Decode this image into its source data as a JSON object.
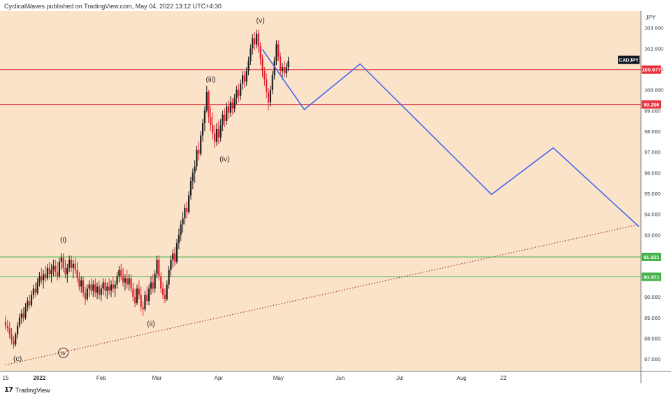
{
  "header": {
    "text": "CyclicalWaves published on TradingView.com, May 04, 2022 13:12 UTC+4:30"
  },
  "footer": {
    "logo": "17",
    "brand": "TradingView"
  },
  "colors": {
    "background": "#fbe3c9",
    "bull": "#1f1f1f",
    "bear": "#e0202f",
    "resistance": "#e8313d",
    "support": "#44b24a",
    "projection": "#3a63f0",
    "trendline": "#a03a2e"
  },
  "chart_data": {
    "type": "candlestick",
    "symbol": "CADJPY",
    "currency_label": "JPY",
    "y_ticks": [
      "103.000",
      "102.000",
      "101.000",
      "100.000",
      "99.000",
      "98.000",
      "97.000",
      "96.000",
      "95.000",
      "94.000",
      "93.000",
      "92.000",
      "91.000",
      "90.000",
      "89.000",
      "88.000",
      "87.000"
    ],
    "ylim": [
      86.4,
      103.8
    ],
    "x_ticks": [
      {
        "label": "15",
        "day": 0
      },
      {
        "label": "2022",
        "day": 17
      },
      {
        "label": "Feb",
        "day": 48
      },
      {
        "label": "Mar",
        "day": 76
      },
      {
        "label": "Apr",
        "day": 107
      },
      {
        "label": "May",
        "day": 137
      },
      {
        "label": "Jun",
        "day": 168
      },
      {
        "label": "Jul",
        "day": 198
      },
      {
        "label": "Aug",
        "day": 229
      },
      {
        "label": "22",
        "day": 250
      }
    ],
    "xlim": [
      0,
      318
    ],
    "price_levels": [
      {
        "label": "100.977",
        "value": 100.977,
        "kind": "resistance"
      },
      {
        "label": "99.296",
        "value": 99.296,
        "kind": "resistance"
      },
      {
        "label": "91.931",
        "value": 91.931,
        "kind": "support"
      },
      {
        "label": "90.971",
        "value": 90.971,
        "kind": "support"
      }
    ],
    "symbol_tag": {
      "label": "CADJPY",
      "value": 101.45
    },
    "wave_labels": [
      {
        "text": "(c)",
        "day": 6,
        "price": 86.9,
        "circled": false
      },
      {
        "text": "iv",
        "day": 29,
        "price": 87.2,
        "circled": true
      },
      {
        "text": "(i)",
        "day": 29,
        "price": 92.65,
        "circled": false
      },
      {
        "text": "(ii)",
        "day": 73,
        "price": 88.6,
        "circled": false
      },
      {
        "text": "(iii)",
        "day": 103,
        "price": 100.4,
        "circled": false
      },
      {
        "text": "(iv)",
        "day": 110,
        "price": 96.55,
        "circled": false
      },
      {
        "text": "(v)",
        "day": 128,
        "price": 103.25,
        "circled": false
      }
    ],
    "projection": [
      {
        "day": 129,
        "price": 101.95
      },
      {
        "day": 150,
        "price": 99.05
      },
      {
        "day": 178,
        "price": 101.25
      },
      {
        "day": 244,
        "price": 94.95
      },
      {
        "day": 275,
        "price": 97.2
      },
      {
        "day": 318,
        "price": 93.4
      }
    ],
    "trendline": [
      {
        "day": 0,
        "price": 86.72
      },
      {
        "day": 318,
        "price": 93.5
      }
    ],
    "candles": [
      {
        "d": 0,
        "o": 88.8,
        "h": 89.1,
        "l": 88.4,
        "c": 88.6
      },
      {
        "d": 1,
        "o": 88.6,
        "h": 88.9,
        "l": 88.3,
        "c": 88.5
      },
      {
        "d": 2,
        "o": 88.5,
        "h": 88.8,
        "l": 88.0,
        "c": 88.2
      },
      {
        "d": 3,
        "o": 88.2,
        "h": 88.5,
        "l": 87.7,
        "c": 87.9
      },
      {
        "d": 4,
        "o": 87.9,
        "h": 88.1,
        "l": 87.5,
        "c": 87.7
      },
      {
        "d": 5,
        "o": 87.7,
        "h": 88.3,
        "l": 87.6,
        "c": 88.2
      },
      {
        "d": 6,
        "o": 88.2,
        "h": 88.8,
        "l": 88.0,
        "c": 88.6
      },
      {
        "d": 7,
        "o": 88.6,
        "h": 89.2,
        "l": 88.5,
        "c": 89.0
      },
      {
        "d": 8,
        "o": 89.0,
        "h": 89.4,
        "l": 88.7,
        "c": 89.2
      },
      {
        "d": 9,
        "o": 89.2,
        "h": 89.5,
        "l": 88.8,
        "c": 89.0
      },
      {
        "d": 10,
        "o": 89.0,
        "h": 89.7,
        "l": 88.9,
        "c": 89.5
      },
      {
        "d": 11,
        "o": 89.5,
        "h": 90.0,
        "l": 89.3,
        "c": 89.8
      },
      {
        "d": 12,
        "o": 89.8,
        "h": 90.1,
        "l": 89.4,
        "c": 89.6
      },
      {
        "d": 13,
        "o": 89.6,
        "h": 90.3,
        "l": 89.5,
        "c": 90.1
      },
      {
        "d": 14,
        "o": 90.1,
        "h": 90.6,
        "l": 89.9,
        "c": 90.4
      },
      {
        "d": 15,
        "o": 90.4,
        "h": 90.7,
        "l": 90.0,
        "c": 90.2
      },
      {
        "d": 16,
        "o": 90.2,
        "h": 90.9,
        "l": 90.1,
        "c": 90.7
      },
      {
        "d": 17,
        "o": 90.7,
        "h": 91.2,
        "l": 90.5,
        "c": 91.0
      },
      {
        "d": 18,
        "o": 91.0,
        "h": 91.4,
        "l": 90.6,
        "c": 90.8
      },
      {
        "d": 19,
        "o": 90.8,
        "h": 91.3,
        "l": 90.4,
        "c": 91.1
      },
      {
        "d": 20,
        "o": 91.1,
        "h": 91.5,
        "l": 90.7,
        "c": 90.9
      },
      {
        "d": 21,
        "o": 90.9,
        "h": 91.6,
        "l": 90.8,
        "c": 91.4
      },
      {
        "d": 22,
        "o": 91.4,
        "h": 91.7,
        "l": 90.9,
        "c": 91.1
      },
      {
        "d": 23,
        "o": 91.1,
        "h": 91.6,
        "l": 90.7,
        "c": 91.3
      },
      {
        "d": 24,
        "o": 91.3,
        "h": 91.8,
        "l": 91.0,
        "c": 91.5
      },
      {
        "d": 25,
        "o": 91.5,
        "h": 91.8,
        "l": 91.0,
        "c": 91.2
      },
      {
        "d": 26,
        "o": 91.2,
        "h": 91.7,
        "l": 90.8,
        "c": 91.0
      },
      {
        "d": 27,
        "o": 91.0,
        "h": 91.9,
        "l": 90.9,
        "c": 91.7
      },
      {
        "d": 28,
        "o": 91.7,
        "h": 92.1,
        "l": 91.3,
        "c": 91.9
      },
      {
        "d": 29,
        "o": 91.9,
        "h": 92.1,
        "l": 91.2,
        "c": 91.4
      },
      {
        "d": 30,
        "o": 91.4,
        "h": 91.8,
        "l": 90.9,
        "c": 91.1
      },
      {
        "d": 31,
        "o": 91.1,
        "h": 91.6,
        "l": 90.7,
        "c": 91.4
      },
      {
        "d": 32,
        "o": 91.4,
        "h": 92.0,
        "l": 91.2,
        "c": 91.8
      },
      {
        "d": 33,
        "o": 91.8,
        "h": 92.0,
        "l": 91.2,
        "c": 91.4
      },
      {
        "d": 34,
        "o": 91.4,
        "h": 91.8,
        "l": 90.9,
        "c": 91.6
      },
      {
        "d": 35,
        "o": 91.6,
        "h": 91.9,
        "l": 91.1,
        "c": 91.3
      },
      {
        "d": 36,
        "o": 91.3,
        "h": 91.7,
        "l": 90.7,
        "c": 90.9
      },
      {
        "d": 37,
        "o": 90.9,
        "h": 91.2,
        "l": 90.3,
        "c": 90.5
      },
      {
        "d": 38,
        "o": 90.5,
        "h": 91.0,
        "l": 90.2,
        "c": 90.8
      },
      {
        "d": 39,
        "o": 90.8,
        "h": 91.0,
        "l": 90.0,
        "c": 90.2
      },
      {
        "d": 40,
        "o": 90.2,
        "h": 90.5,
        "l": 89.6,
        "c": 89.9
      },
      {
        "d": 41,
        "o": 89.9,
        "h": 90.6,
        "l": 89.8,
        "c": 90.4
      },
      {
        "d": 42,
        "o": 90.4,
        "h": 90.8,
        "l": 90.0,
        "c": 90.6
      },
      {
        "d": 43,
        "o": 90.6,
        "h": 90.9,
        "l": 90.1,
        "c": 90.3
      },
      {
        "d": 44,
        "o": 90.3,
        "h": 90.8,
        "l": 90.0,
        "c": 90.6
      },
      {
        "d": 45,
        "o": 90.6,
        "h": 90.9,
        "l": 90.0,
        "c": 90.2
      },
      {
        "d": 46,
        "o": 90.2,
        "h": 90.7,
        "l": 89.9,
        "c": 90.5
      },
      {
        "d": 47,
        "o": 90.5,
        "h": 90.8,
        "l": 89.9,
        "c": 90.1
      },
      {
        "d": 48,
        "o": 90.1,
        "h": 90.6,
        "l": 89.8,
        "c": 90.4
      },
      {
        "d": 49,
        "o": 90.4,
        "h": 90.9,
        "l": 90.1,
        "c": 90.7
      },
      {
        "d": 50,
        "o": 90.7,
        "h": 90.9,
        "l": 90.0,
        "c": 90.3
      },
      {
        "d": 51,
        "o": 90.3,
        "h": 90.7,
        "l": 89.9,
        "c": 90.5
      },
      {
        "d": 52,
        "o": 90.5,
        "h": 90.9,
        "l": 90.1,
        "c": 90.3
      },
      {
        "d": 53,
        "o": 90.3,
        "h": 90.8,
        "l": 90.0,
        "c": 90.6
      },
      {
        "d": 54,
        "o": 90.6,
        "h": 91.0,
        "l": 90.2,
        "c": 90.4
      },
      {
        "d": 55,
        "o": 90.4,
        "h": 90.8,
        "l": 90.0,
        "c": 90.6
      },
      {
        "d": 56,
        "o": 90.6,
        "h": 91.2,
        "l": 90.4,
        "c": 91.0
      },
      {
        "d": 57,
        "o": 91.0,
        "h": 91.5,
        "l": 90.7,
        "c": 91.3
      },
      {
        "d": 58,
        "o": 91.3,
        "h": 91.6,
        "l": 90.8,
        "c": 91.0
      },
      {
        "d": 59,
        "o": 91.0,
        "h": 91.4,
        "l": 90.5,
        "c": 90.7
      },
      {
        "d": 60,
        "o": 90.7,
        "h": 91.1,
        "l": 90.3,
        "c": 90.9
      },
      {
        "d": 61,
        "o": 90.9,
        "h": 91.3,
        "l": 90.4,
        "c": 90.6
      },
      {
        "d": 62,
        "o": 90.6,
        "h": 91.1,
        "l": 90.3,
        "c": 90.9
      },
      {
        "d": 63,
        "o": 90.9,
        "h": 91.1,
        "l": 90.2,
        "c": 90.4
      },
      {
        "d": 64,
        "o": 90.4,
        "h": 90.7,
        "l": 89.8,
        "c": 90.0
      },
      {
        "d": 65,
        "o": 90.0,
        "h": 90.4,
        "l": 89.5,
        "c": 89.7
      },
      {
        "d": 66,
        "o": 89.7,
        "h": 90.6,
        "l": 89.6,
        "c": 90.4
      },
      {
        "d": 67,
        "o": 90.4,
        "h": 90.8,
        "l": 89.9,
        "c": 90.1
      },
      {
        "d": 68,
        "o": 90.1,
        "h": 90.5,
        "l": 89.3,
        "c": 89.5
      },
      {
        "d": 69,
        "o": 89.5,
        "h": 89.8,
        "l": 89.1,
        "c": 89.4
      },
      {
        "d": 70,
        "o": 89.4,
        "h": 90.3,
        "l": 89.3,
        "c": 90.1
      },
      {
        "d": 71,
        "o": 90.1,
        "h": 90.5,
        "l": 89.6,
        "c": 89.8
      },
      {
        "d": 72,
        "o": 89.8,
        "h": 90.6,
        "l": 89.6,
        "c": 90.4
      },
      {
        "d": 73,
        "o": 90.4,
        "h": 91.0,
        "l": 90.1,
        "c": 90.7
      },
      {
        "d": 74,
        "o": 90.7,
        "h": 91.1,
        "l": 90.2,
        "c": 90.4
      },
      {
        "d": 75,
        "o": 90.4,
        "h": 91.3,
        "l": 90.2,
        "c": 91.1
      },
      {
        "d": 76,
        "o": 91.1,
        "h": 92.0,
        "l": 90.9,
        "c": 91.8
      },
      {
        "d": 77,
        "o": 91.8,
        "h": 92.0,
        "l": 90.8,
        "c": 91.0
      },
      {
        "d": 78,
        "o": 91.0,
        "h": 91.2,
        "l": 90.2,
        "c": 90.4
      },
      {
        "d": 79,
        "o": 90.4,
        "h": 90.7,
        "l": 89.9,
        "c": 90.1
      },
      {
        "d": 80,
        "o": 90.1,
        "h": 90.4,
        "l": 89.7,
        "c": 89.9
      },
      {
        "d": 81,
        "o": 89.9,
        "h": 90.8,
        "l": 89.8,
        "c": 90.6
      },
      {
        "d": 82,
        "o": 90.6,
        "h": 91.5,
        "l": 90.4,
        "c": 91.3
      },
      {
        "d": 83,
        "o": 91.3,
        "h": 92.0,
        "l": 91.0,
        "c": 91.8
      },
      {
        "d": 84,
        "o": 91.8,
        "h": 92.3,
        "l": 91.4,
        "c": 92.1
      },
      {
        "d": 85,
        "o": 92.1,
        "h": 92.4,
        "l": 91.5,
        "c": 91.7
      },
      {
        "d": 86,
        "o": 91.7,
        "h": 92.8,
        "l": 91.6,
        "c": 92.6
      },
      {
        "d": 87,
        "o": 92.6,
        "h": 93.3,
        "l": 92.3,
        "c": 93.0
      },
      {
        "d": 88,
        "o": 93.0,
        "h": 93.7,
        "l": 92.7,
        "c": 93.5
      },
      {
        "d": 89,
        "o": 93.5,
        "h": 94.1,
        "l": 93.1,
        "c": 93.8
      },
      {
        "d": 90,
        "o": 93.8,
        "h": 94.5,
        "l": 93.5,
        "c": 94.3
      },
      {
        "d": 91,
        "o": 94.3,
        "h": 94.6,
        "l": 93.8,
        "c": 94.1
      },
      {
        "d": 92,
        "o": 94.1,
        "h": 95.1,
        "l": 94.0,
        "c": 94.9
      },
      {
        "d": 93,
        "o": 94.9,
        "h": 95.8,
        "l": 94.7,
        "c": 95.6
      },
      {
        "d": 94,
        "o": 95.6,
        "h": 96.2,
        "l": 95.2,
        "c": 96.0
      },
      {
        "d": 95,
        "o": 96.0,
        "h": 96.6,
        "l": 95.5,
        "c": 96.3
      },
      {
        "d": 96,
        "o": 96.3,
        "h": 97.3,
        "l": 96.1,
        "c": 97.1
      },
      {
        "d": 97,
        "o": 97.1,
        "h": 97.5,
        "l": 96.6,
        "c": 96.9
      },
      {
        "d": 98,
        "o": 96.9,
        "h": 98.0,
        "l": 96.8,
        "c": 97.8
      },
      {
        "d": 99,
        "o": 97.8,
        "h": 98.6,
        "l": 97.5,
        "c": 98.4
      },
      {
        "d": 100,
        "o": 98.4,
        "h": 99.2,
        "l": 98.0,
        "c": 99.0
      },
      {
        "d": 101,
        "o": 99.0,
        "h": 100.2,
        "l": 98.9,
        "c": 99.9
      },
      {
        "d": 102,
        "o": 99.9,
        "h": 100.0,
        "l": 98.4,
        "c": 98.7
      },
      {
        "d": 103,
        "o": 98.7,
        "h": 99.2,
        "l": 98.0,
        "c": 98.3
      },
      {
        "d": 104,
        "o": 98.3,
        "h": 98.9,
        "l": 97.6,
        "c": 97.9
      },
      {
        "d": 105,
        "o": 97.9,
        "h": 98.3,
        "l": 97.2,
        "c": 97.5
      },
      {
        "d": 106,
        "o": 97.5,
        "h": 98.4,
        "l": 97.3,
        "c": 98.1
      },
      {
        "d": 107,
        "o": 98.1,
        "h": 98.5,
        "l": 97.4,
        "c": 97.7
      },
      {
        "d": 108,
        "o": 97.7,
        "h": 98.6,
        "l": 97.5,
        "c": 98.3
      },
      {
        "d": 109,
        "o": 98.3,
        "h": 99.0,
        "l": 98.0,
        "c": 98.8
      },
      {
        "d": 110,
        "o": 98.8,
        "h": 99.1,
        "l": 98.2,
        "c": 98.5
      },
      {
        "d": 111,
        "o": 98.5,
        "h": 99.4,
        "l": 98.3,
        "c": 99.2
      },
      {
        "d": 112,
        "o": 99.2,
        "h": 99.5,
        "l": 98.6,
        "c": 98.9
      },
      {
        "d": 113,
        "o": 98.9,
        "h": 99.7,
        "l": 98.7,
        "c": 99.4
      },
      {
        "d": 114,
        "o": 99.4,
        "h": 99.6,
        "l": 98.8,
        "c": 99.1
      },
      {
        "d": 115,
        "o": 99.1,
        "h": 99.8,
        "l": 98.9,
        "c": 99.6
      },
      {
        "d": 116,
        "o": 99.6,
        "h": 100.2,
        "l": 99.3,
        "c": 100.0
      },
      {
        "d": 117,
        "o": 100.0,
        "h": 100.3,
        "l": 99.4,
        "c": 99.7
      },
      {
        "d": 118,
        "o": 99.7,
        "h": 100.5,
        "l": 99.5,
        "c": 100.3
      },
      {
        "d": 119,
        "o": 100.3,
        "h": 100.9,
        "l": 100.0,
        "c": 100.7
      },
      {
        "d": 120,
        "o": 100.7,
        "h": 100.9,
        "l": 100.1,
        "c": 100.4
      },
      {
        "d": 121,
        "o": 100.4,
        "h": 101.1,
        "l": 100.2,
        "c": 100.9
      },
      {
        "d": 122,
        "o": 100.9,
        "h": 101.6,
        "l": 100.7,
        "c": 101.4
      },
      {
        "d": 123,
        "o": 101.4,
        "h": 102.2,
        "l": 101.2,
        "c": 102.0
      },
      {
        "d": 124,
        "o": 102.0,
        "h": 102.7,
        "l": 101.7,
        "c": 102.5
      },
      {
        "d": 125,
        "o": 102.5,
        "h": 102.8,
        "l": 101.9,
        "c": 102.2
      },
      {
        "d": 126,
        "o": 102.2,
        "h": 102.9,
        "l": 102.0,
        "c": 102.7
      },
      {
        "d": 127,
        "o": 102.7,
        "h": 102.9,
        "l": 101.8,
        "c": 102.1
      },
      {
        "d": 128,
        "o": 102.1,
        "h": 102.3,
        "l": 101.2,
        "c": 101.5
      },
      {
        "d": 129,
        "o": 101.5,
        "h": 101.7,
        "l": 100.6,
        "c": 100.9
      },
      {
        "d": 130,
        "o": 100.9,
        "h": 101.1,
        "l": 100.2,
        "c": 100.5
      },
      {
        "d": 131,
        "o": 100.5,
        "h": 100.8,
        "l": 99.6,
        "c": 99.9
      },
      {
        "d": 132,
        "o": 99.9,
        "h": 100.1,
        "l": 99.0,
        "c": 99.4
      },
      {
        "d": 133,
        "o": 99.4,
        "h": 100.2,
        "l": 99.2,
        "c": 100.0
      },
      {
        "d": 134,
        "o": 100.0,
        "h": 100.9,
        "l": 99.8,
        "c": 100.7
      },
      {
        "d": 135,
        "o": 100.7,
        "h": 101.6,
        "l": 100.5,
        "c": 101.4
      },
      {
        "d": 136,
        "o": 101.4,
        "h": 102.4,
        "l": 101.2,
        "c": 102.2
      },
      {
        "d": 137,
        "o": 102.2,
        "h": 102.4,
        "l": 101.4,
        "c": 101.6
      },
      {
        "d": 138,
        "o": 101.6,
        "h": 101.8,
        "l": 100.7,
        "c": 100.9
      },
      {
        "d": 139,
        "o": 100.9,
        "h": 101.3,
        "l": 100.5,
        "c": 101.1
      },
      {
        "d": 140,
        "o": 101.1,
        "h": 101.4,
        "l": 100.6,
        "c": 100.8
      },
      {
        "d": 141,
        "o": 100.8,
        "h": 101.3,
        "l": 100.6,
        "c": 101.1
      },
      {
        "d": 142,
        "o": 101.1,
        "h": 101.6,
        "l": 100.9,
        "c": 101.4
      }
    ]
  }
}
